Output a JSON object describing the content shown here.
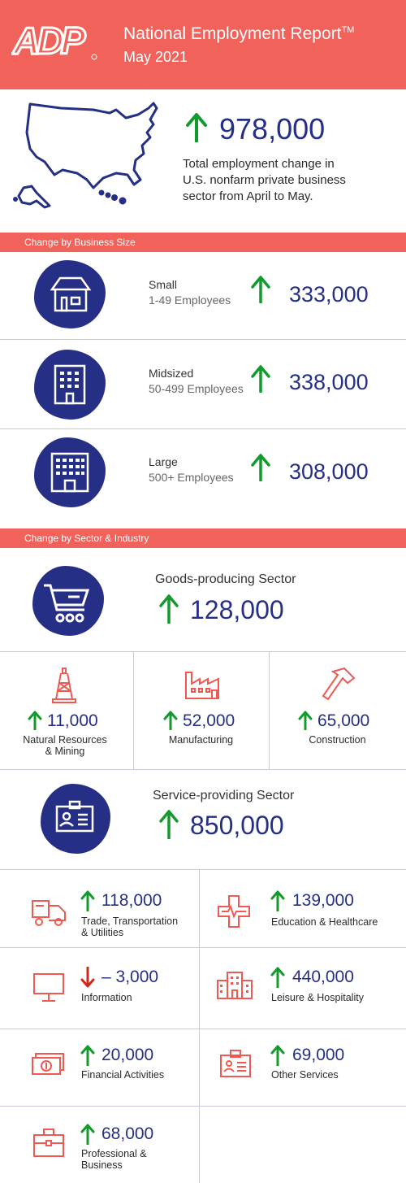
{
  "colors": {
    "header_bg": "#f0625a",
    "navy": "#262f86",
    "up": "#139a2c",
    "down": "#d0271d",
    "icon_coral": "#ee5a52"
  },
  "header": {
    "logo": "ADP",
    "title": "National Employment Report",
    "tm": "TM",
    "subtitle": "May 2021"
  },
  "total": {
    "direction": "up",
    "value": "978,000",
    "description": [
      "Total employment change in",
      "U.S. nonfarm private business",
      "sector from April to May."
    ],
    "icon": "usa-map-icon"
  },
  "business_size": {
    "band_label": "Change by Business Size",
    "rows": [
      {
        "name": "Small",
        "range": "1-49 Employees",
        "direction": "up",
        "value": "333,000",
        "icon": "house-icon"
      },
      {
        "name": "Midsized",
        "range": "50-499 Employees",
        "direction": "up",
        "value": "338,000",
        "icon": "office-building-icon"
      },
      {
        "name": "Large",
        "range": "500+ Employees",
        "direction": "up",
        "value": "308,000",
        "icon": "large-building-icon"
      }
    ]
  },
  "sector": {
    "band_label": "Change by Sector & Industry",
    "goods": {
      "name": "Goods-producing Sector",
      "direction": "up",
      "value": "128,000",
      "icon": "shopping-cart-icon"
    },
    "goods_industries": [
      {
        "direction": "up",
        "value": "11,000",
        "label": [
          "Natural Resources",
          "& Mining"
        ],
        "icon": "oil-derrick-icon"
      },
      {
        "direction": "up",
        "value": "52,000",
        "label": [
          "Manufacturing"
        ],
        "icon": "factory-icon"
      },
      {
        "direction": "up",
        "value": "65,000",
        "label": [
          "Construction"
        ],
        "icon": "hammer-icon"
      }
    ],
    "services": {
      "name": "Service-providing Sector",
      "direction": "up",
      "value": "850,000",
      "icon": "id-badge-icon"
    },
    "service_industries": [
      {
        "direction": "up",
        "value": "118,000",
        "label": [
          "Trade, Transportation",
          "& Utilities"
        ],
        "icon": "truck-icon"
      },
      {
        "direction": "up",
        "value": "139,000",
        "label": [
          "Education & Healthcare"
        ],
        "icon": "medical-cross-icon"
      },
      {
        "direction": "down",
        "value": "– 3,000",
        "label": [
          "Information"
        ],
        "icon": "monitor-icon"
      },
      {
        "direction": "up",
        "value": "440,000",
        "label": [
          "Leisure & Hospitality"
        ],
        "icon": "hotel-icon"
      },
      {
        "direction": "up",
        "value": "20,000",
        "label": [
          "Financial Activities"
        ],
        "icon": "money-icon"
      },
      {
        "direction": "up",
        "value": "69,000",
        "label": [
          "Other Services"
        ],
        "icon": "id-card-icon"
      },
      {
        "direction": "up",
        "value": "68,000",
        "label": [
          "Professional &",
          "Business"
        ],
        "icon": "briefcase-icon"
      }
    ]
  }
}
